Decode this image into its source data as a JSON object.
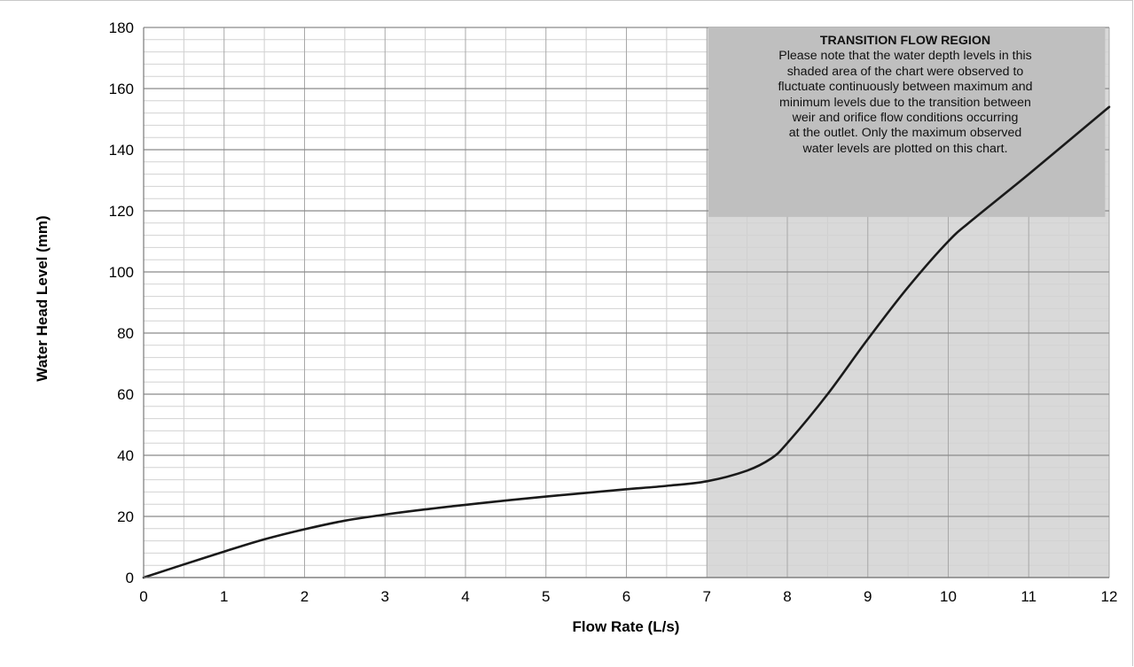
{
  "chart_data": {
    "type": "line",
    "xlabel": "Flow Rate (L/s)",
    "ylabel": "Water Head Level (mm)",
    "xlim": [
      0,
      12
    ],
    "ylim": [
      0,
      180
    ],
    "x_ticks": [
      "0",
      "1",
      "2",
      "3",
      "4",
      "5",
      "6",
      "7",
      "8",
      "9",
      "10",
      "11",
      "12"
    ],
    "y_ticks": [
      "0",
      "20",
      "40",
      "60",
      "80",
      "100",
      "120",
      "140",
      "160",
      "180"
    ],
    "grid": true,
    "series": [
      {
        "color": "#1a1a1a",
        "x": [
          0,
          0.5,
          1,
          1.5,
          2,
          2.5,
          3,
          3.5,
          4,
          4.5,
          5,
          5.5,
          6,
          6.5,
          7,
          7.5,
          7.8,
          8,
          8.5,
          9,
          9.5,
          10,
          10.3,
          11,
          12
        ],
        "y": [
          0,
          4.3,
          8.5,
          12.5,
          15.8,
          18.6,
          20.6,
          22.3,
          23.8,
          25.2,
          26.5,
          27.7,
          28.9,
          30,
          31.5,
          35,
          39,
          44,
          60,
          78,
          95,
          110,
          117,
          132,
          154
        ]
      }
    ],
    "shaded_region": {
      "x_from": 7,
      "x_to": 12,
      "color": "#d9d9d9"
    },
    "annotation": {
      "title": "TRANSITION FLOW REGION",
      "lines": [
        "Please note that the water depth levels in this",
        "shaded area of the chart were observed to",
        "fluctuate continuously between maximum and",
        "minimum levels due to the transition between",
        "weir and orifice flow conditions occurring",
        "at the outlet. Only the maximum observed",
        "water levels are plotted on this chart."
      ],
      "background": "#bfbfbf"
    }
  }
}
